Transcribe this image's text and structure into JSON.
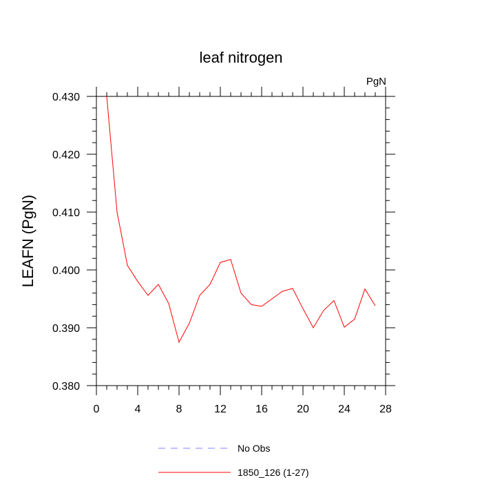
{
  "chart_data": {
    "type": "line",
    "title": "leaf nitrogen",
    "units_label": "PgN",
    "xlabel": "",
    "ylabel": "LEAFN  (PgN)",
    "xlim": [
      0,
      28
    ],
    "ylim": [
      0.38,
      0.43
    ],
    "x_ticks": [
      0,
      4,
      8,
      12,
      16,
      20,
      24,
      28
    ],
    "x_tick_labels": [
      "0",
      "4",
      "8",
      "12",
      "16",
      "20",
      "24",
      "28"
    ],
    "y_ticks": [
      0.38,
      0.39,
      0.4,
      0.41,
      0.42,
      0.43
    ],
    "y_tick_labels": [
      "0.380",
      "0.390",
      "0.400",
      "0.410",
      "0.420",
      "0.430"
    ],
    "series": [
      {
        "name": "1850_126 (1-27)",
        "color": "#ff0000",
        "dash": "solid",
        "x": [
          1,
          2,
          3,
          4,
          5,
          6,
          7,
          8,
          9,
          10,
          11,
          12,
          13,
          14,
          15,
          16,
          17,
          18,
          19,
          20,
          21,
          22,
          23,
          24,
          25,
          26,
          27
        ],
        "values": [
          0.43,
          0.41,
          0.4008,
          0.398,
          0.3956,
          0.3975,
          0.3942,
          0.3875,
          0.3908,
          0.3956,
          0.3975,
          0.4013,
          0.4018,
          0.396,
          0.394,
          0.3937,
          0.395,
          0.3963,
          0.3968,
          0.3933,
          0.39,
          0.393,
          0.3947,
          0.3901,
          0.3915,
          0.3967,
          0.3938
        ]
      }
    ],
    "legend": [
      {
        "label": "No Obs",
        "color": "#8080ff",
        "dash": "dashed"
      },
      {
        "label": "1850_126 (1-27)",
        "color": "#ff0000",
        "dash": "solid"
      }
    ]
  }
}
